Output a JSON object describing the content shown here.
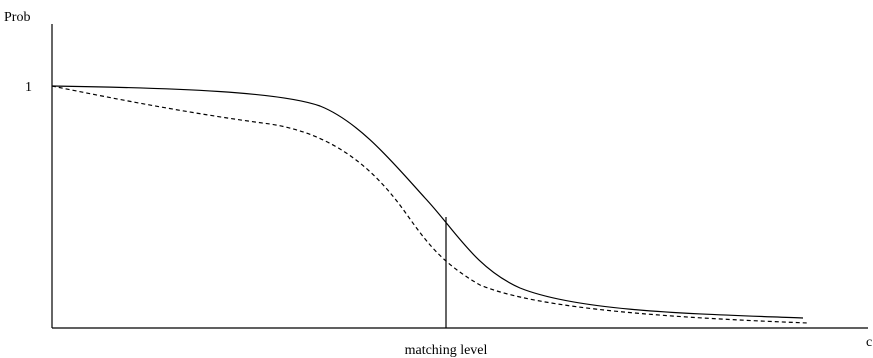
{
  "labels": {
    "y_axis": "Prob",
    "y_tick": "1",
    "x_axis_end": "c",
    "threshold": "matching level"
  },
  "colors": {
    "ink": "#000000",
    "background": "#ffffff"
  },
  "curves": [
    {
      "style": "solid"
    },
    {
      "style": "dashed"
    }
  ]
}
